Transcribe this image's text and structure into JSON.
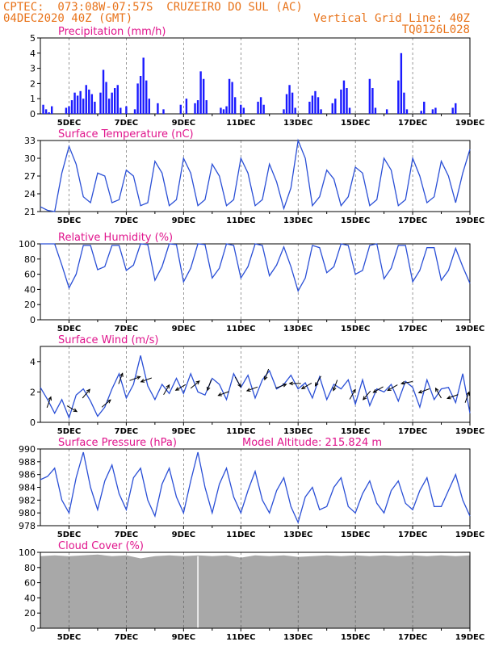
{
  "header": {
    "line1": "CPTEC:  073:08W-07:57S  CRUZEIRO DO SUL (AC)",
    "line2": "04DEC2020 40Z (GMT)",
    "right1": "Vertical Grid Line: 40Z",
    "right2": "TQ0126L028"
  },
  "chart_data": [
    {
      "id": "precip",
      "type": "bar",
      "title": "Precipitation (mm/h)",
      "ylim": [
        0,
        5
      ],
      "yticks": [
        0,
        1,
        2,
        3,
        4,
        5
      ],
      "xticks": [
        "5DEC",
        "7DEC",
        "9DEC",
        "11DEC",
        "13DEC",
        "15DEC",
        "17DEC",
        "19DEC"
      ],
      "x_range_days": [
        4.0,
        19.0
      ],
      "grid": "vertical dashed",
      "color": "#1a1aff",
      "series": [
        {
          "x": [
            4.1,
            4.2,
            4.3,
            4.4,
            4.9,
            5.0,
            5.1,
            5.2,
            5.3,
            5.4,
            5.5,
            5.6,
            5.7,
            5.8,
            5.9,
            6.1,
            6.2,
            6.3,
            6.4,
            6.5,
            6.6,
            6.7,
            6.8,
            7.0,
            7.3,
            7.4,
            7.5,
            7.6,
            7.7,
            7.8,
            8.1,
            8.3,
            8.9,
            9.1,
            9.4,
            9.5,
            9.6,
            9.7,
            9.8,
            10.3,
            10.4,
            10.5,
            10.6,
            10.7,
            10.8,
            11.0,
            11.1,
            11.6,
            11.7,
            11.8,
            12.5,
            12.6,
            12.7,
            12.8,
            12.9,
            13.4,
            13.5,
            13.6,
            13.7,
            13.8,
            14.2,
            14.3,
            14.5,
            14.6,
            14.7,
            14.8,
            15.5,
            15.6,
            15.7,
            16.1,
            16.5,
            16.6,
            16.7,
            16.8,
            17.3,
            17.4,
            17.7,
            17.8,
            18.4,
            18.5
          ],
          "values": [
            0.6,
            0.3,
            0.1,
            0.5,
            0.4,
            0.5,
            0.9,
            1.4,
            1.2,
            1.5,
            1.0,
            1.9,
            1.6,
            1.3,
            0.8,
            1.4,
            2.9,
            2.1,
            1.0,
            1.4,
            1.7,
            1.9,
            0.4,
            0.5,
            0.3,
            2.0,
            2.5,
            3.7,
            2.2,
            1.0,
            0.7,
            0.3,
            0.6,
            1.0,
            0.7,
            0.9,
            2.8,
            2.3,
            0.9,
            0.4,
            0.3,
            0.5,
            2.3,
            2.1,
            1.1,
            0.6,
            0.4,
            0.8,
            1.1,
            0.6,
            0.3,
            1.3,
            1.9,
            1.4,
            0.4,
            0.8,
            1.2,
            1.5,
            1.1,
            0.3,
            0.7,
            1.0,
            1.6,
            2.2,
            1.7,
            0.4,
            2.3,
            1.7,
            0.4,
            0.3,
            2.2,
            4.0,
            1.4,
            0.3,
            0.2,
            0.8,
            0.3,
            0.4,
            0.4,
            0.7
          ]
        }
      ]
    },
    {
      "id": "temp",
      "type": "line",
      "title": "Surface Temperature (nC)",
      "ylim": [
        21,
        33
      ],
      "yticks": [
        21,
        24,
        27,
        30,
        33
      ],
      "xticks": [
        "5DEC",
        "7DEC",
        "9DEC",
        "11DEC",
        "13DEC",
        "15DEC",
        "17DEC",
        "19DEC"
      ],
      "x_range_days": [
        4.0,
        19.0
      ],
      "color": "#2a4fd6",
      "series": [
        {
          "x": [
            4.0,
            4.25,
            4.5,
            4.75,
            5.0,
            5.25,
            5.5,
            5.75,
            6.0,
            6.25,
            6.5,
            6.75,
            7.0,
            7.25,
            7.5,
            7.75,
            8.0,
            8.25,
            8.5,
            8.75,
            9.0,
            9.25,
            9.5,
            9.75,
            10.0,
            10.25,
            10.5,
            10.75,
            11.0,
            11.25,
            11.5,
            11.75,
            12.0,
            12.25,
            12.5,
            12.75,
            13.0,
            13.25,
            13.5,
            13.75,
            14.0,
            14.25,
            14.5,
            14.75,
            15.0,
            15.25,
            15.5,
            15.75,
            16.0,
            16.25,
            16.5,
            16.75,
            17.0,
            17.25,
            17.5,
            17.75,
            18.0,
            18.25,
            18.5,
            18.75,
            19.0
          ],
          "values": [
            21.8,
            21.2,
            21.0,
            27.5,
            32.0,
            29.0,
            23.5,
            22.5,
            27.5,
            27.0,
            22.5,
            23.0,
            28.0,
            27.0,
            22.0,
            22.5,
            29.5,
            27.5,
            22.0,
            23.0,
            30.0,
            27.5,
            22.0,
            23.0,
            29.0,
            27.0,
            22.0,
            23.0,
            30.0,
            27.5,
            22.0,
            23.0,
            29.0,
            26.0,
            21.5,
            25.0,
            33.0,
            30.0,
            22.0,
            23.5,
            28.0,
            26.5,
            22.0,
            23.5,
            28.5,
            27.5,
            22.0,
            23.0,
            30.0,
            28.0,
            22.0,
            23.0,
            30.0,
            27.0,
            22.5,
            23.5,
            29.5,
            27.0,
            22.5,
            27.5,
            31.5
          ]
        }
      ]
    },
    {
      "id": "rh",
      "type": "line",
      "title": "Relative Humidity (%)",
      "ylim": [
        0,
        100
      ],
      "yticks": [
        0,
        20,
        40,
        60,
        80,
        100
      ],
      "xticks": [
        "5DEC",
        "7DEC",
        "9DEC",
        "11DEC",
        "13DEC",
        "15DEC",
        "17DEC",
        "19DEC"
      ],
      "x_range_days": [
        4.0,
        19.0
      ],
      "color": "#2a4fd6",
      "series": [
        {
          "x": [
            4.0,
            4.25,
            4.5,
            4.75,
            5.0,
            5.25,
            5.5,
            5.75,
            6.0,
            6.25,
            6.5,
            6.75,
            7.0,
            7.25,
            7.5,
            7.75,
            8.0,
            8.25,
            8.5,
            8.75,
            9.0,
            9.25,
            9.5,
            9.75,
            10.0,
            10.25,
            10.5,
            10.75,
            11.0,
            11.25,
            11.5,
            11.75,
            12.0,
            12.25,
            12.5,
            12.75,
            13.0,
            13.25,
            13.5,
            13.75,
            14.0,
            14.25,
            14.5,
            14.75,
            15.0,
            15.25,
            15.5,
            15.75,
            16.0,
            16.25,
            16.5,
            16.75,
            17.0,
            17.25,
            17.5,
            17.75,
            18.0,
            18.25,
            18.5,
            18.75,
            19.0
          ],
          "values": [
            100,
            100,
            100,
            72,
            42,
            60,
            98,
            98,
            66,
            70,
            98,
            98,
            65,
            72,
            100,
            99,
            52,
            70,
            100,
            99,
            50,
            68,
            100,
            99,
            55,
            68,
            100,
            98,
            55,
            70,
            100,
            98,
            58,
            72,
            96,
            70,
            38,
            55,
            98,
            95,
            62,
            70,
            100,
            98,
            60,
            65,
            98,
            100,
            54,
            68,
            98,
            98,
            50,
            65,
            95,
            95,
            52,
            65,
            94,
            70,
            48
          ]
        }
      ]
    },
    {
      "id": "wind",
      "type": "line",
      "title": "Surface Wind (m/s)",
      "ylim": [
        0,
        5
      ],
      "yticks": [
        0,
        2,
        4
      ],
      "xticks": [
        "5DEC",
        "7DEC",
        "9DEC",
        "11DEC",
        "13DEC",
        "15DEC",
        "17DEC",
        "19DEC"
      ],
      "x_range_days": [
        4.0,
        19.0
      ],
      "color": "#2a4fd6",
      "series": [
        {
          "x": [
            4.0,
            4.25,
            4.5,
            4.75,
            5.0,
            5.25,
            5.5,
            5.75,
            6.0,
            6.25,
            6.5,
            6.75,
            7.0,
            7.25,
            7.5,
            7.75,
            8.0,
            8.25,
            8.5,
            8.75,
            9.0,
            9.25,
            9.5,
            9.75,
            10.0,
            10.25,
            10.5,
            10.75,
            11.0,
            11.25,
            11.5,
            11.75,
            12.0,
            12.25,
            12.5,
            12.75,
            13.0,
            13.25,
            13.5,
            13.75,
            14.0,
            14.25,
            14.5,
            14.75,
            15.0,
            15.25,
            15.5,
            15.75,
            16.0,
            16.25,
            16.5,
            16.75,
            17.0,
            17.25,
            17.5,
            17.75,
            18.0,
            18.25,
            18.5,
            18.75,
            19.0
          ],
          "values": [
            2.3,
            1.5,
            0.6,
            1.5,
            0.3,
            1.8,
            2.2,
            1.4,
            0.4,
            1.0,
            2.2,
            3.2,
            1.6,
            2.5,
            4.4,
            2.4,
            1.5,
            2.5,
            1.9,
            2.9,
            1.9,
            3.2,
            2.0,
            1.8,
            2.9,
            2.5,
            1.5,
            3.2,
            2.3,
            3.1,
            1.6,
            2.8,
            3.4,
            2.2,
            2.5,
            3.1,
            2.2,
            2.6,
            1.6,
            3.0,
            1.5,
            2.5,
            2.2,
            2.8,
            1.2,
            2.8,
            1.1,
            2.2,
            2.0,
            2.5,
            1.4,
            2.7,
            2.3,
            1.0,
            2.8,
            1.5,
            2.2,
            2.3,
            1.3,
            3.2,
            0.6
          ]
        }
      ],
      "arrows": {
        "x": [
          4.3,
          5.1,
          5.6,
          6.3,
          6.8,
          7.3,
          7.7,
          8.4,
          8.9,
          9.4,
          9.9,
          10.4,
          10.9,
          11.4,
          11.9,
          12.4,
          12.9,
          13.3,
          13.7,
          14.3,
          14.9,
          15.4,
          15.8,
          16.3,
          16.8,
          17.4,
          17.9,
          18.4,
          18.9
        ],
        "dir_deg": [
          70,
          330,
          50,
          40,
          70,
          20,
          200,
          60,
          210,
          40,
          250,
          200,
          300,
          200,
          250,
          20,
          180,
          210,
          240,
          250,
          60,
          230,
          210,
          210,
          190,
          200,
          120,
          200,
          70
        ]
      }
    },
    {
      "id": "pres",
      "type": "line",
      "title": "Surface Pressure (hPa)",
      "annotation": "Model Altitude: 215.824 m",
      "ylim": [
        978,
        990
      ],
      "yticks": [
        978,
        980,
        982,
        984,
        986,
        988,
        990
      ],
      "xticks": [
        "5DEC",
        "7DEC",
        "9DEC",
        "11DEC",
        "13DEC",
        "15DEC",
        "17DEC",
        "19DEC"
      ],
      "x_range_days": [
        4.0,
        19.0
      ],
      "color": "#2a4fd6",
      "series": [
        {
          "x": [
            4.0,
            4.25,
            4.5,
            4.75,
            5.0,
            5.25,
            5.5,
            5.75,
            6.0,
            6.25,
            6.5,
            6.75,
            7.0,
            7.25,
            7.5,
            7.75,
            8.0,
            8.25,
            8.5,
            8.75,
            9.0,
            9.25,
            9.5,
            9.75,
            10.0,
            10.25,
            10.5,
            10.75,
            11.0,
            11.25,
            11.5,
            11.75,
            12.0,
            12.25,
            12.5,
            12.75,
            13.0,
            13.25,
            13.5,
            13.75,
            14.0,
            14.25,
            14.5,
            14.75,
            15.0,
            15.25,
            15.5,
            15.75,
            16.0,
            16.25,
            16.5,
            16.75,
            17.0,
            17.25,
            17.5,
            17.75,
            18.0,
            18.25,
            18.5,
            18.75,
            19.0
          ],
          "values": [
            985.2,
            985.7,
            987.0,
            982.0,
            980.0,
            985.5,
            989.5,
            984.0,
            980.5,
            985.0,
            987.5,
            983.0,
            980.5,
            985.5,
            987.0,
            982.0,
            979.5,
            984.5,
            987.0,
            982.5,
            980.0,
            985.0,
            989.5,
            984.0,
            980.0,
            984.5,
            987.0,
            982.5,
            980.0,
            983.5,
            986.5,
            982.0,
            980.0,
            983.5,
            985.5,
            981.0,
            978.5,
            982.5,
            984.0,
            980.5,
            981.0,
            984.0,
            985.5,
            981.0,
            980.0,
            983.0,
            985.0,
            981.5,
            980.0,
            983.5,
            985.0,
            981.5,
            980.5,
            983.5,
            985.5,
            981.0,
            981.0,
            983.5,
            986.0,
            982.0,
            979.5
          ]
        }
      ]
    },
    {
      "id": "cloud",
      "type": "area",
      "title": "Cloud Cover (%)",
      "ylim": [
        0,
        100
      ],
      "yticks": [
        0,
        20,
        40,
        60,
        80,
        100
      ],
      "xticks": [
        "5DEC",
        "7DEC",
        "9DEC",
        "11DEC",
        "13DEC",
        "15DEC",
        "17DEC",
        "19DEC"
      ],
      "x_range_days": [
        4.0,
        19.0
      ],
      "color": "#a8a8a8",
      "series": [
        {
          "x": [
            4.0,
            4.5,
            5.0,
            5.5,
            6.0,
            6.5,
            7.0,
            7.5,
            8.0,
            8.5,
            9.0,
            9.5,
            10.0,
            10.5,
            11.0,
            11.5,
            12.0,
            12.5,
            13.0,
            13.5,
            14.0,
            14.5,
            15.0,
            15.5,
            16.0,
            16.5,
            17.0,
            17.5,
            18.0,
            18.5,
            19.0
          ],
          "values": [
            95,
            96,
            95,
            96,
            97,
            95,
            96,
            92,
            95,
            96,
            95,
            96,
            95,
            96,
            93,
            96,
            95,
            96,
            94,
            95,
            96,
            95,
            96,
            95,
            96,
            95,
            96,
            95,
            96,
            95,
            96
          ]
        }
      ]
    }
  ]
}
